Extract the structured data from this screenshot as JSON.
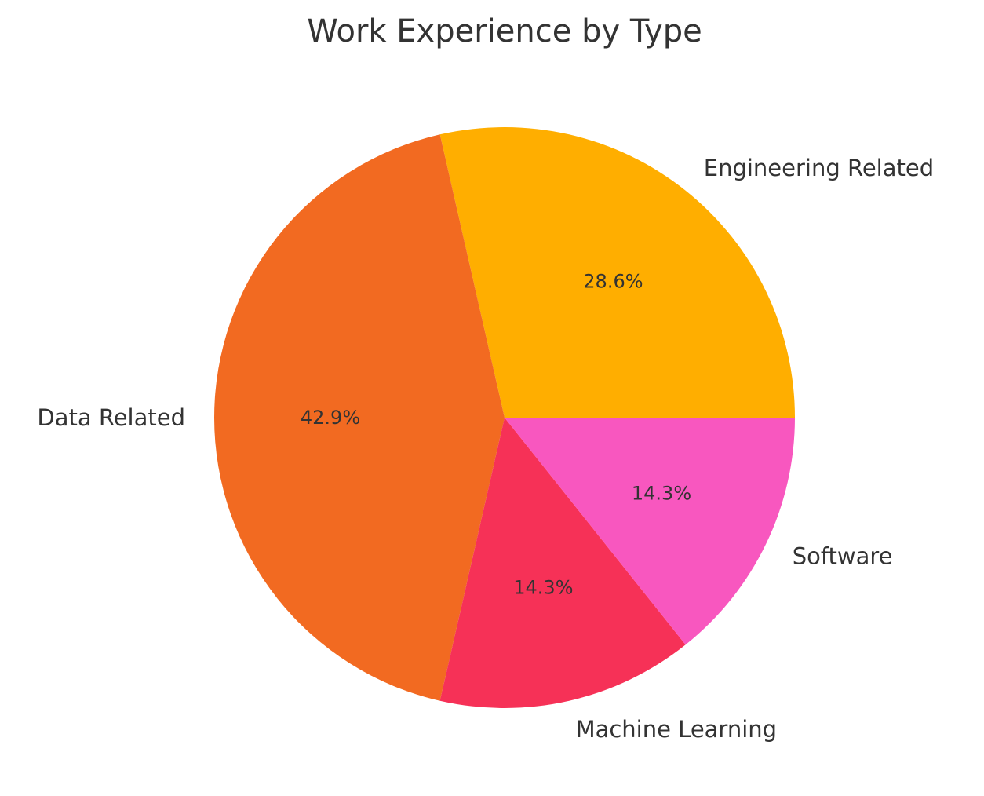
{
  "chart_data": {
    "type": "pie",
    "title": "Work Experience by Type",
    "slices": [
      {
        "label": "Engineering Related",
        "value": 28.6,
        "pct_label": "28.6%",
        "color": "#FFAE00"
      },
      {
        "label": "Data Related",
        "value": 42.9,
        "pct_label": "42.9%",
        "color": "#F26A21"
      },
      {
        "label": "Machine Learning",
        "value": 14.3,
        "pct_label": "14.3%",
        "color": "#F63157"
      },
      {
        "label": "Software",
        "value": 14.3,
        "pct_label": "14.3%",
        "color": "#F857BF"
      }
    ],
    "start_angle_deg": 0,
    "direction": "counterclockwise",
    "legend": "none"
  }
}
